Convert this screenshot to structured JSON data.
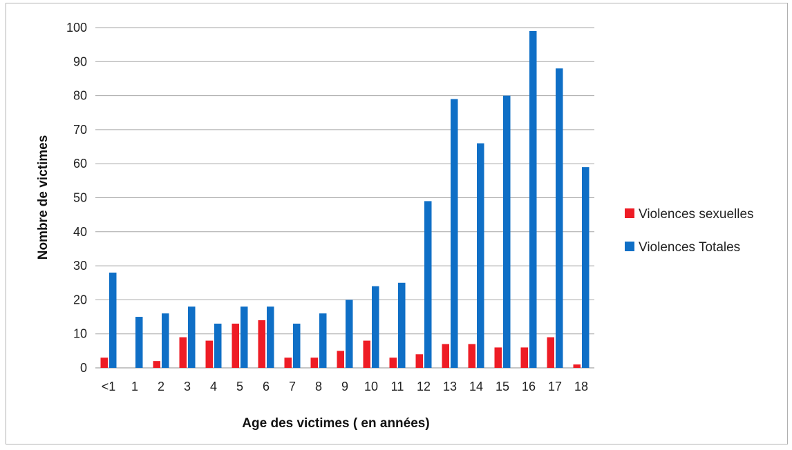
{
  "chart_data": {
    "type": "bar",
    "categories": [
      "<1",
      "1",
      "2",
      "3",
      "4",
      "5",
      "6",
      "7",
      "8",
      "9",
      "10",
      "11",
      "12",
      "13",
      "14",
      "15",
      "16",
      "17",
      "18"
    ],
    "series": [
      {
        "name": "Violences sexuelles",
        "color": "#ee1c25",
        "values": [
          3,
          0,
          2,
          9,
          8,
          13,
          14,
          3,
          3,
          5,
          8,
          3,
          4,
          7,
          7,
          6,
          6,
          9,
          1
        ]
      },
      {
        "name": "Violences Totales",
        "color": "#0f6fc6",
        "values": [
          28,
          15,
          16,
          18,
          13,
          18,
          18,
          13,
          16,
          20,
          24,
          25,
          49,
          79,
          66,
          80,
          99,
          88,
          59
        ]
      }
    ],
    "xlabel": "Age des victimes ( en années)",
    "ylabel": "Nombre de victimes",
    "ylim": [
      0,
      100
    ],
    "yticks": [
      0,
      10,
      20,
      30,
      40,
      50,
      60,
      70,
      80,
      90,
      100
    ],
    "grid": true,
    "legend_position": "right"
  }
}
